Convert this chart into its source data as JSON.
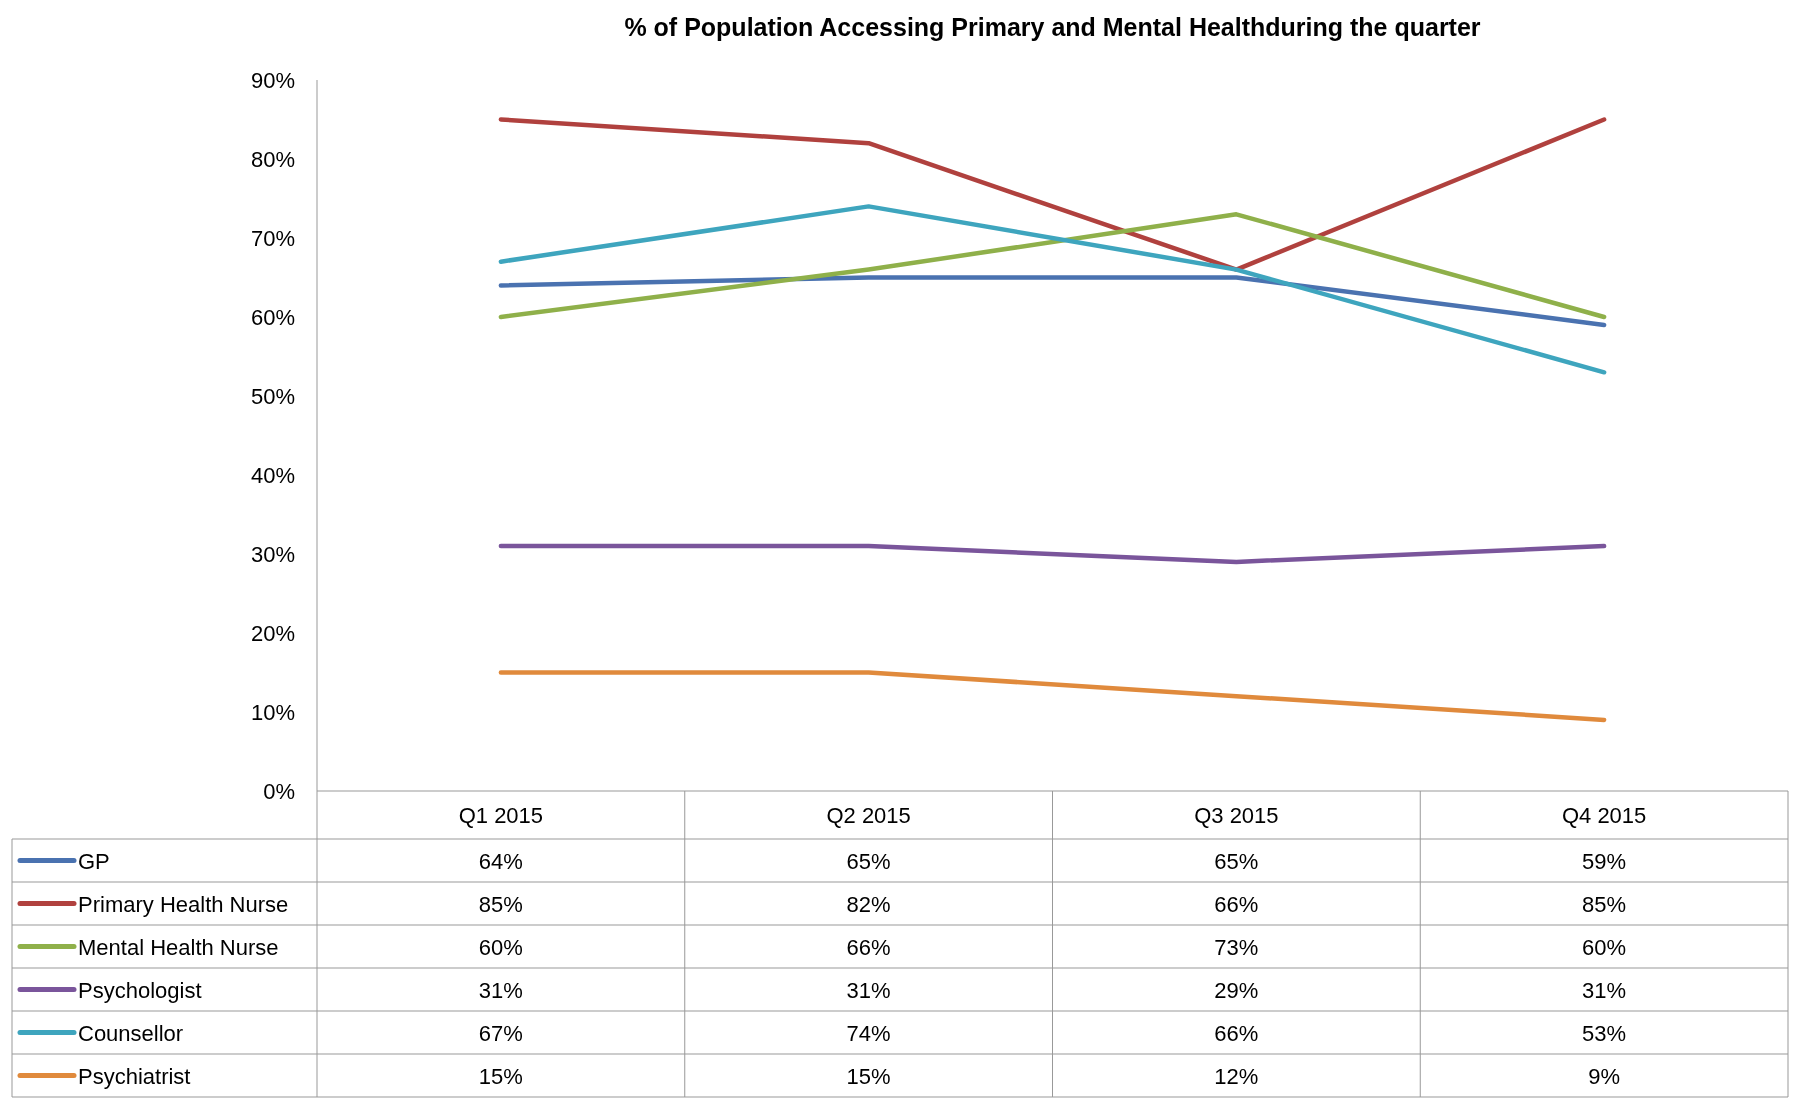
{
  "chart_data": {
    "type": "line",
    "title": "% of Population Accessing Primary and Mental Healthduring the quarter",
    "categories": [
      "Q1 2015",
      "Q2 2015",
      "Q3 2015",
      "Q4 2015"
    ],
    "series": [
      {
        "name": "GP",
        "color": "#4a72b0",
        "values": [
          64,
          65,
          65,
          59
        ],
        "value_labels": [
          "64%",
          "65%",
          "65%",
          "59%"
        ]
      },
      {
        "name": "Primary Health Nurse",
        "color": "#b0413e",
        "values": [
          85,
          82,
          66,
          85
        ],
        "value_labels": [
          "85%",
          "82%",
          "66%",
          "85%"
        ]
      },
      {
        "name": "Mental Health Nurse",
        "color": "#8fb04a",
        "values": [
          60,
          66,
          73,
          60
        ],
        "value_labels": [
          "60%",
          "66%",
          "73%",
          "60%"
        ]
      },
      {
        "name": "Psychologist",
        "color": "#7a559b",
        "values": [
          31,
          31,
          29,
          31
        ],
        "value_labels": [
          "31%",
          "31%",
          "29%",
          "31%"
        ]
      },
      {
        "name": "Counsellor",
        "color": "#3ea5be",
        "values": [
          67,
          74,
          66,
          53
        ],
        "value_labels": [
          "67%",
          "74%",
          "66%",
          "53%"
        ]
      },
      {
        "name": "Psychiatrist",
        "color": "#e08a3c",
        "values": [
          15,
          15,
          12,
          9
        ],
        "value_labels": [
          "15%",
          "15%",
          "12%",
          "9%"
        ]
      }
    ],
    "ylim": [
      0,
      90
    ],
    "yticks": [
      {
        "value": 0,
        "label": "0%"
      },
      {
        "value": 10,
        "label": "10%"
      },
      {
        "value": 20,
        "label": "20%"
      },
      {
        "value": 30,
        "label": "30%"
      },
      {
        "value": 40,
        "label": "40%"
      },
      {
        "value": 50,
        "label": "50%"
      },
      {
        "value": 60,
        "label": "60%"
      },
      {
        "value": 70,
        "label": "70%"
      },
      {
        "value": 80,
        "label": "80%"
      },
      {
        "value": 90,
        "label": "90%"
      }
    ],
    "legend": "bottom",
    "marker": "none",
    "line_style": "solid"
  }
}
